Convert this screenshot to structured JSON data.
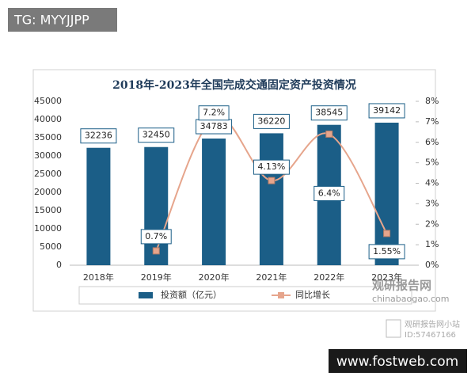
{
  "chart_data": {
    "type": "bar_line",
    "title": "2018年-2023年全国完成交通固定资产投资情况",
    "categories": [
      "2018年",
      "2019年",
      "2020年",
      "2021年",
      "2022年",
      "2023年"
    ],
    "series": [
      {
        "name": "投资额（亿元）",
        "type": "bar",
        "color": "#1b5e87",
        "values": [
          32236,
          32450,
          34783,
          36220,
          38545,
          39142
        ]
      },
      {
        "name": "同比增长",
        "type": "line",
        "axis": "y2",
        "color": "#e6a58c",
        "values": [
          null,
          0.7,
          7.2,
          4.13,
          6.4,
          1.55
        ],
        "value_labels": [
          null,
          "0.7%",
          "7.2%",
          "4.13%",
          "6.4%",
          "1.55%"
        ]
      }
    ],
    "ylim": [
      0,
      45000
    ],
    "yticks": [
      0,
      5000,
      10000,
      15000,
      20000,
      25000,
      30000,
      35000,
      40000,
      45000
    ],
    "y2lim": [
      0,
      8
    ],
    "y2ticks": [
      {
        "value": 0,
        "label": "0%"
      },
      {
        "value": 1,
        "label": "1%"
      },
      {
        "value": 2,
        "label": "2%"
      },
      {
        "value": 3,
        "label": "3%"
      },
      {
        "value": 4,
        "label": "4%"
      },
      {
        "value": 5,
        "label": "5%"
      },
      {
        "value": 6,
        "label": "6%"
      },
      {
        "value": 7,
        "label": "7%"
      },
      {
        "value": 8,
        "label": "8%"
      }
    ],
    "grid": false,
    "legend": "bottom"
  },
  "overlay": {
    "tag": "TG: MYYJJPP",
    "brand": "观研报告网",
    "domain": "chinabaogao.com",
    "station": "观研报告网小站",
    "station_id": "ID:57467166",
    "site": "www.fostweb.com"
  }
}
